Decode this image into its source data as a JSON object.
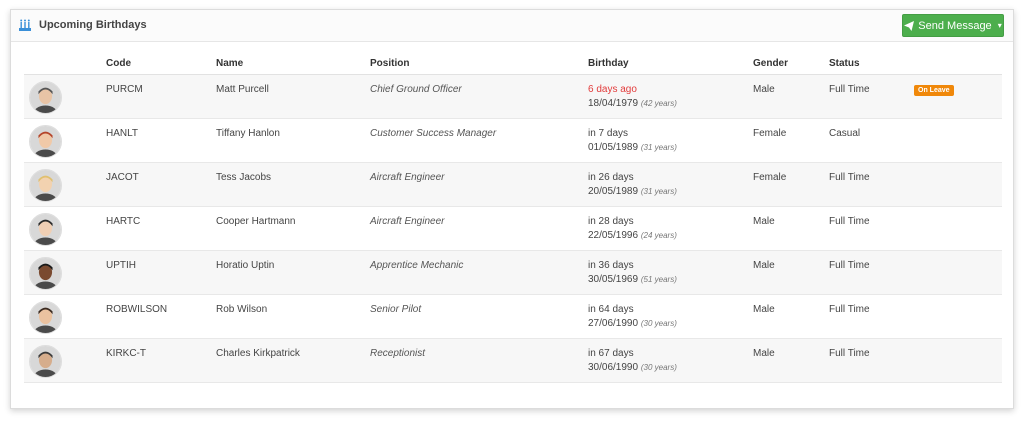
{
  "header": {
    "title": "Upcoming Birthdays",
    "icon": "birthday-cake-icon",
    "send_button_label": "Send Message"
  },
  "table": {
    "columns": [
      "Code",
      "Name",
      "Position",
      "Birthday",
      "Gender",
      "Status"
    ],
    "rows": [
      {
        "code": "PURCM",
        "name": "Matt Purcell",
        "position": "Chief Ground Officer",
        "relative": "6 days ago",
        "date": "18/04/1979",
        "age": "(42 years)",
        "gender": "Male",
        "status": "Full Time",
        "badge": "On Leave",
        "past": true
      },
      {
        "code": "HANLT",
        "name": "Tiffany Hanlon",
        "position": "Customer Success Manager",
        "relative": "in 7 days",
        "date": "01/05/1989",
        "age": "(31 years)",
        "gender": "Female",
        "status": "Casual",
        "badge": "",
        "past": false
      },
      {
        "code": "JACOT",
        "name": "Tess Jacobs",
        "position": "Aircraft Engineer",
        "relative": "in 26 days",
        "date": "20/05/1989",
        "age": "(31 years)",
        "gender": "Female",
        "status": "Full Time",
        "badge": "",
        "past": false
      },
      {
        "code": "HARTC",
        "name": "Cooper Hartmann",
        "position": "Aircraft Engineer",
        "relative": "in 28 days",
        "date": "22/05/1996",
        "age": "(24 years)",
        "gender": "Male",
        "status": "Full Time",
        "badge": "",
        "past": false
      },
      {
        "code": "UPTIH",
        "name": "Horatio Uptin",
        "position": "Apprentice Mechanic",
        "relative": "in 36 days",
        "date": "30/05/1969",
        "age": "(51 years)",
        "gender": "Male",
        "status": "Full Time",
        "badge": "",
        "past": false
      },
      {
        "code": "ROBWILSON",
        "name": "Rob Wilson",
        "position": "Senior Pilot",
        "relative": "in 64 days",
        "date": "27/06/1990",
        "age": "(30 years)",
        "gender": "Male",
        "status": "Full Time",
        "badge": "",
        "past": false
      },
      {
        "code": "KIRKC-T",
        "name": "Charles Kirkpatrick",
        "position": "Receptionist",
        "relative": "in 67 days",
        "date": "30/06/1990",
        "age": "(30 years)",
        "gender": "Male",
        "status": "Full Time",
        "badge": "",
        "past": false
      }
    ]
  },
  "colors": {
    "accent_green": "#4cae4c",
    "past_red": "#e23b3b",
    "badge_orange": "#f0880a"
  }
}
